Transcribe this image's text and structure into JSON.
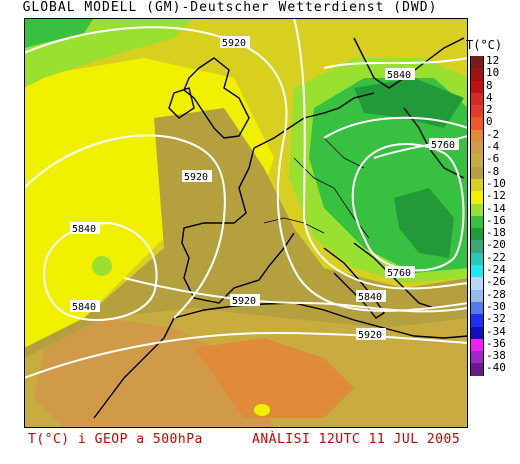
{
  "header": {
    "title": "GLOBAL MODELL (GM)-Deutscher Wetterdienst (DWD)"
  },
  "legend": {
    "title": "T(°C)",
    "entries": [
      {
        "label": "12",
        "color": "#7a1a1a"
      },
      {
        "label": "10",
        "color": "#a01212"
      },
      {
        "label": "8",
        "color": "#c01010"
      },
      {
        "label": "4",
        "color": "#d82828"
      },
      {
        "label": "2",
        "color": "#e63a2a"
      },
      {
        "label": "0",
        "color": "#f0582a"
      },
      {
        "label": "-2",
        "color": "#e08a3c"
      },
      {
        "label": "-4",
        "color": "#d09a48"
      },
      {
        "label": "-6",
        "color": "#c8ac40"
      },
      {
        "label": "-8",
        "color": "#b5a040"
      },
      {
        "label": "-10",
        "color": "#d8d020"
      },
      {
        "label": "-12",
        "color": "#f0f000"
      },
      {
        "label": "-14",
        "color": "#9ae030"
      },
      {
        "label": "-16",
        "color": "#38c040"
      },
      {
        "label": "-18",
        "color": "#229a3a"
      },
      {
        "label": "-20",
        "color": "#3aa878"
      },
      {
        "label": "-22",
        "color": "#28c8c0"
      },
      {
        "label": "-24",
        "color": "#20e8f0"
      },
      {
        "label": "-26",
        "color": "#b8d8f8"
      },
      {
        "label": "-28",
        "color": "#98b8f0"
      },
      {
        "label": "-30",
        "color": "#5878f0"
      },
      {
        "label": "-32",
        "color": "#2030f0"
      },
      {
        "label": "-34",
        "color": "#1010c0"
      },
      {
        "label": "-36",
        "color": "#f020f0"
      },
      {
        "label": "-38",
        "color": "#a028c8"
      },
      {
        "label": "-40",
        "color": "#6a1a8a"
      }
    ]
  },
  "contour_labels": [
    "5920",
    "5840",
    "5760",
    "5920",
    "5840",
    "5840",
    "5920",
    "5840",
    "5760",
    "5920"
  ],
  "footer": {
    "left": "T(°C) i GEOP a 500hPa",
    "right": "ANÀLISI 12UTC 11 JUL 2005"
  }
}
